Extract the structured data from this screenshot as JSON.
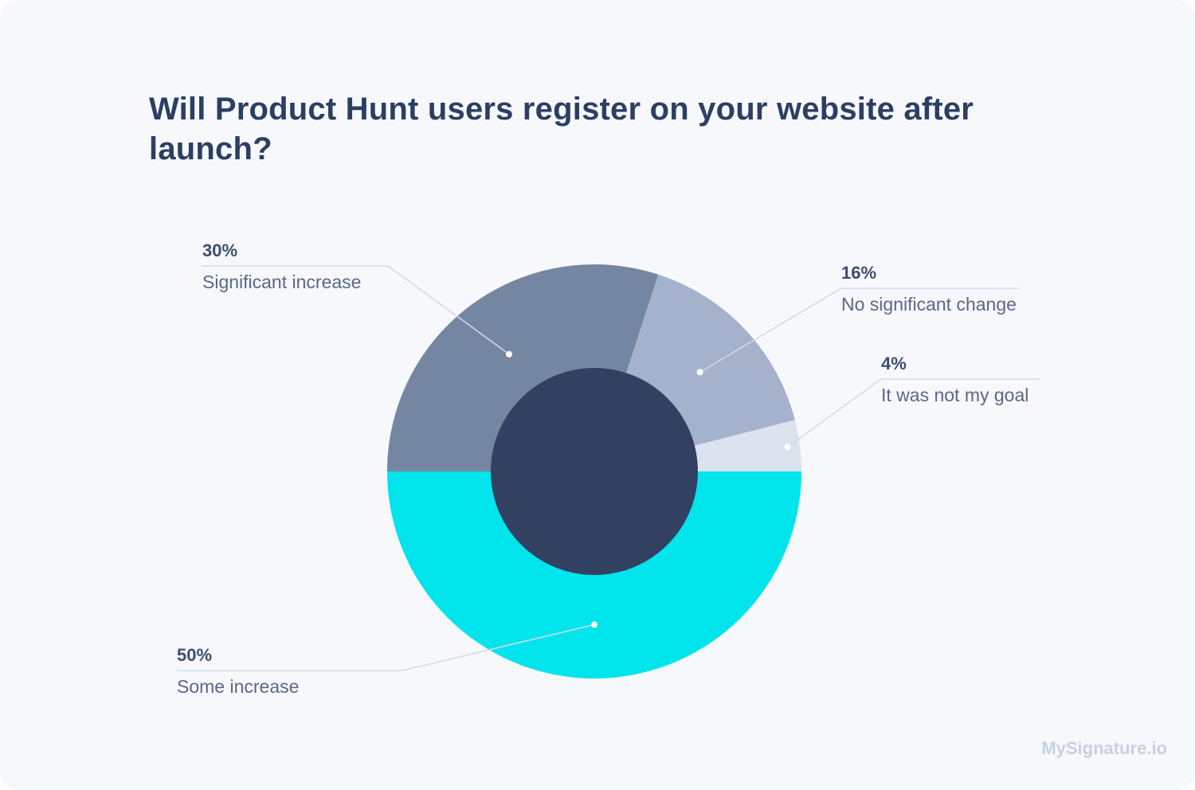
{
  "chart_data": {
    "type": "pie",
    "variant": "donut",
    "title": "Will Product Hunt users register on your website after launch?",
    "slices": [
      {
        "label": "Some increase",
        "value": 50,
        "value_label": "50%",
        "color": "#00e4ec"
      },
      {
        "label": "Significant increase",
        "value": 30,
        "value_label": "30%",
        "color": "#7586a2"
      },
      {
        "label": "No significant change",
        "value": 16,
        "value_label": "16%",
        "color": "#a4b2cc"
      },
      {
        "label": "It was not my goal",
        "value": 4,
        "value_label": "4%",
        "color": "#dce3ee"
      }
    ],
    "center_color": "#324162",
    "label_value_color": "#3c4d70",
    "label_text_color": "#5a6885",
    "leader_color": "#d2dae6"
  },
  "branding": {
    "watermark": "MySignature.io"
  }
}
